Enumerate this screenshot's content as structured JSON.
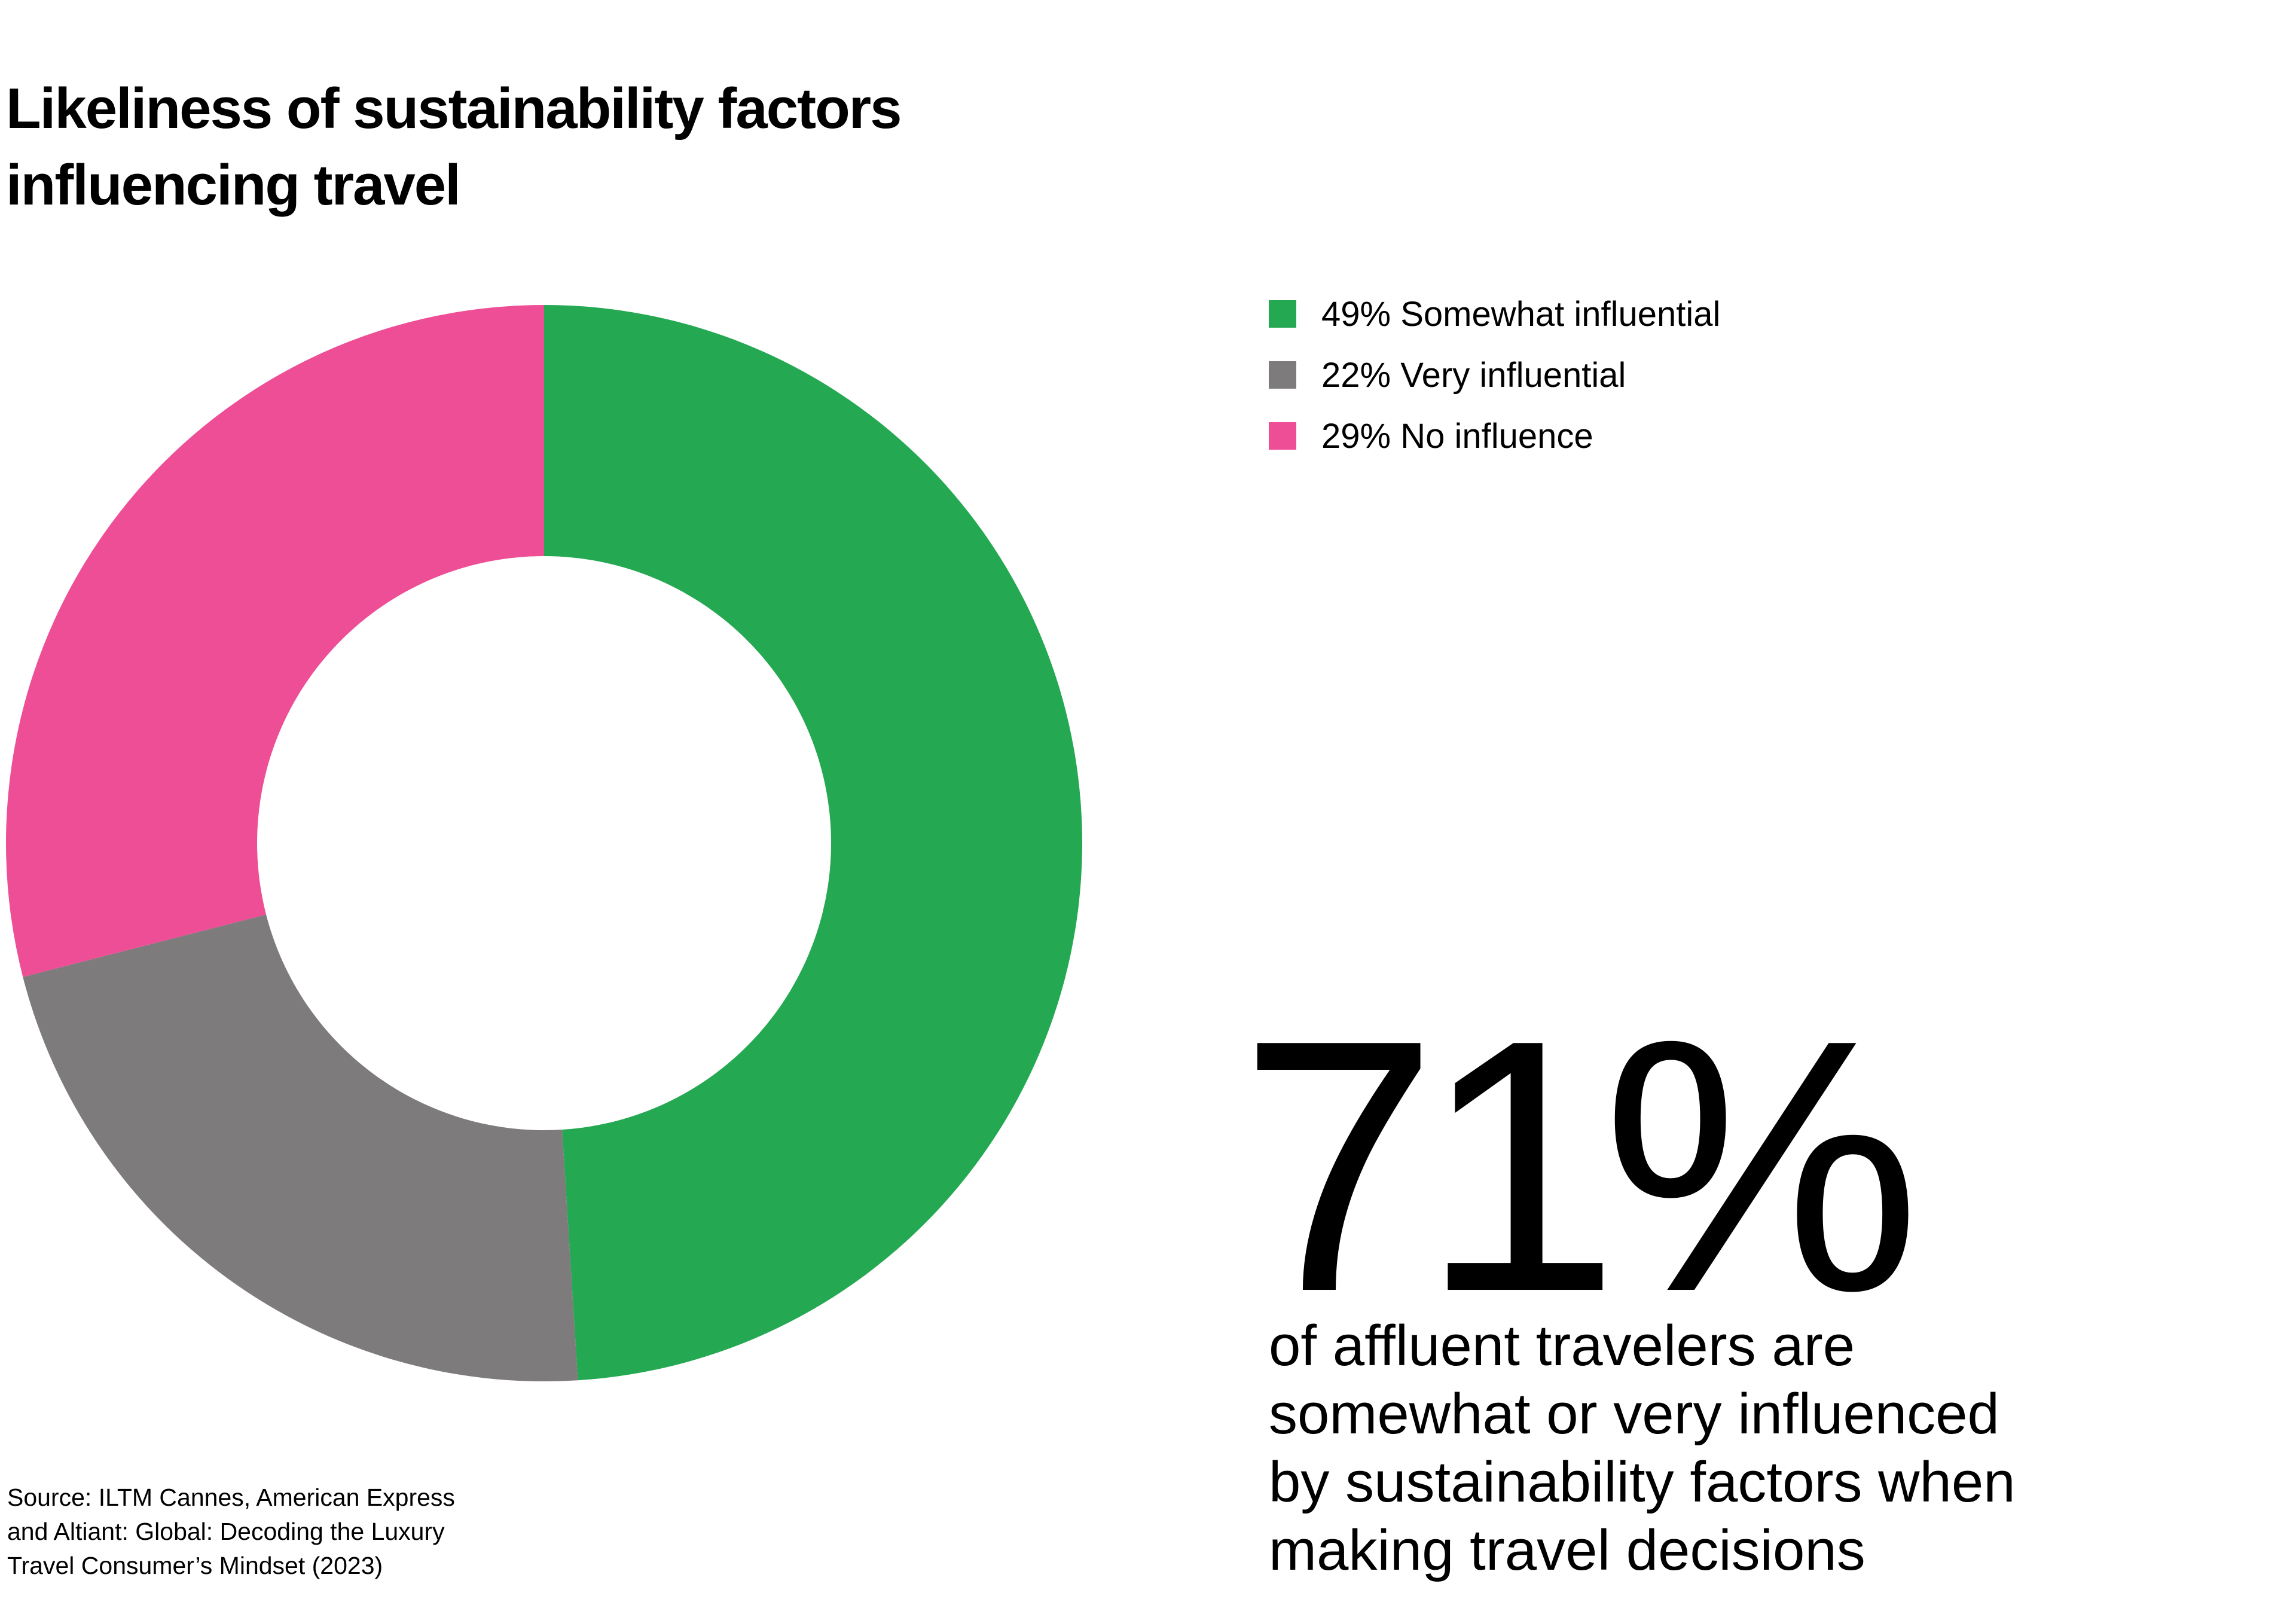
{
  "title_lines": [
    "Likeliness of sustainability factors",
    "influencing travel"
  ],
  "chart_data": {
    "type": "pie",
    "subtype": "donut",
    "slices": [
      {
        "label": "Somewhat influential",
        "value": 49,
        "color": "#24a852"
      },
      {
        "label": "Very influential",
        "value": 22,
        "color": "#7e7b7c"
      },
      {
        "label": "No influence",
        "value": 29,
        "color": "#ed4e96"
      }
    ],
    "legend_placement": "top-right"
  },
  "legend": [
    {
      "text": "49% Somewhat influential",
      "color": "#24a852"
    },
    {
      "text": "22% Very influential",
      "color": "#7e7b7c"
    },
    {
      "text": "29% No influence",
      "color": "#ed4e96"
    }
  ],
  "highlight": {
    "value": "71%",
    "statement_lines": [
      "of affluent travelers are",
      "somewhat or very influenced",
      "by sustainability factors when",
      "making travel decisions"
    ]
  },
  "source_lines": [
    "Source: ILTM Cannes, American Express",
    "and Altiant: Global: Decoding the Luxury",
    "Travel Consumer’s Mindset (2023)"
  ]
}
